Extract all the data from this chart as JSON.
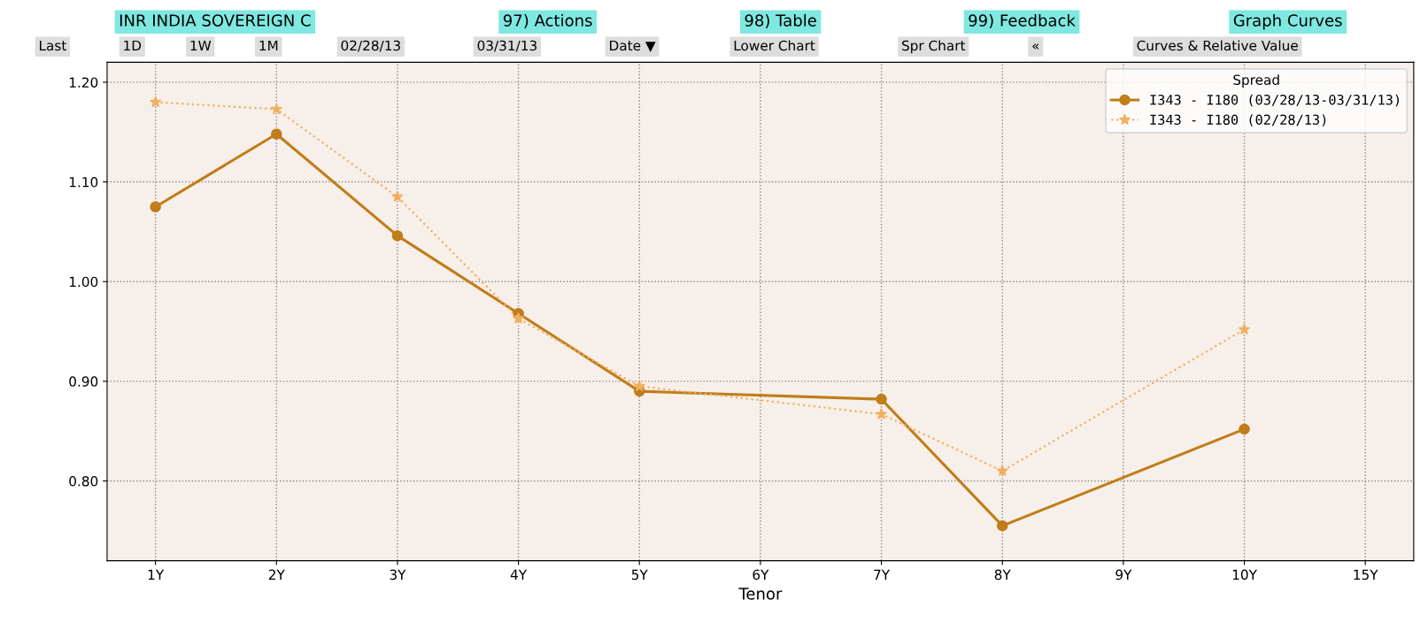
{
  "chart_data": {
    "type": "line",
    "xlabel": "Tenor",
    "legend_title": "Spread",
    "legend": "top right",
    "grid": true,
    "categories": [
      "1Y",
      "2Y",
      "3Y",
      "4Y",
      "5Y",
      "6Y",
      "7Y",
      "8Y",
      "9Y",
      "10Y",
      "15Y"
    ],
    "series": [
      {
        "name": "I343 - I180 (03/28/13-03/31/13)",
        "color": "#c07d1a",
        "marker": "circle",
        "line_style": "solid",
        "values": [
          1.075,
          1.148,
          1.046,
          0.968,
          0.89,
          null,
          0.882,
          0.755,
          null,
          0.852,
          null
        ]
      },
      {
        "name": "I343 - I180 (02/28/13)",
        "color": "#f0b060",
        "marker": "star",
        "line_style": "dotted",
        "values": [
          1.18,
          1.173,
          1.085,
          0.963,
          0.895,
          null,
          0.867,
          0.81,
          null,
          0.952,
          null
        ]
      }
    ],
    "ylim": [
      0.72,
      1.22
    ],
    "yticks": [
      {
        "value": 0.8,
        "label": "0.80"
      },
      {
        "value": 0.9,
        "label": "0.90"
      },
      {
        "value": 1.0,
        "label": "1.00"
      },
      {
        "value": 1.1,
        "label": "1.10"
      },
      {
        "value": 1.2,
        "label": "1.20"
      }
    ],
    "annotations": [
      "INR INDIA SOVEREIGN C",
      "97) Actions",
      "98) Table",
      "99) Feedback",
      "Graph Curves",
      "Last",
      "1D",
      "1W",
      "1M",
      "02/28/13",
      "03/31/13",
      "Date ▼",
      "Lower Chart",
      "Spr Chart",
      "«",
      "Curves & Relative Value"
    ]
  }
}
